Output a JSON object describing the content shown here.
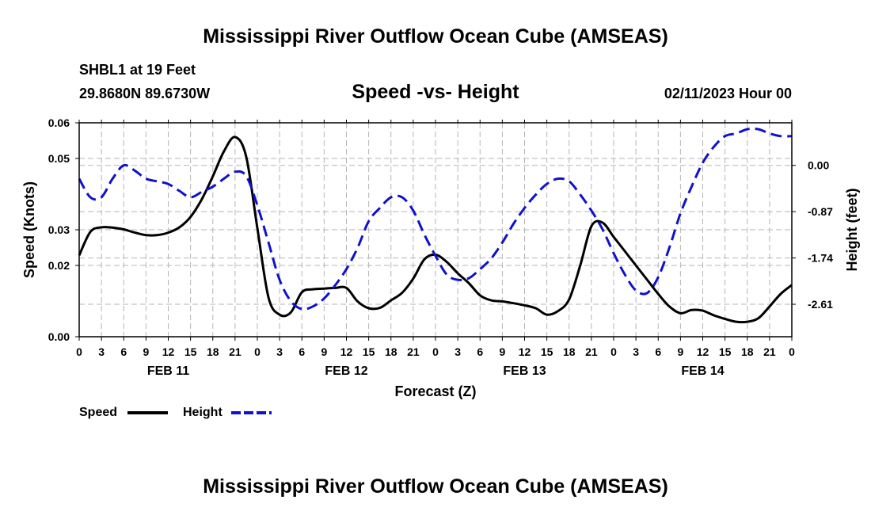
{
  "header": {
    "title": "Mississippi River Outflow Ocean Cube (AMSEAS)",
    "station": "SHBL1 at 19 Feet",
    "coords": "29.8680N  89.6730W",
    "subtitle": "Speed -vs- Height",
    "timestamp": "02/11/2023 Hour 00"
  },
  "footer": {
    "title": "Mississippi River Outflow Ocean Cube (AMSEAS)"
  },
  "legend": {
    "speed_label": "Speed",
    "height_label": "Height"
  },
  "colors": {
    "speed": "#000000",
    "height": "#1111cc",
    "grid": "#b5b5b5"
  },
  "chart_data": {
    "type": "line",
    "title": "Speed -vs- Height",
    "xlabel": "Forecast (Z)",
    "ylabel": "Speed (Knots)",
    "y2label": "Height (feet)",
    "xlim": [
      0,
      96
    ],
    "ylim": [
      0,
      0.06
    ],
    "y2lim": [
      -3.22,
      0.8
    ],
    "x_tick_labels": [
      "0",
      "3",
      "6",
      "9",
      "12",
      "15",
      "18",
      "21",
      "0",
      "3",
      "6",
      "9",
      "12",
      "15",
      "18",
      "21",
      "0",
      "3",
      "6",
      "9",
      "12",
      "15",
      "18",
      "21",
      "0",
      "3",
      "6",
      "9",
      "12",
      "15",
      "18",
      "21",
      "0"
    ],
    "y_ticks": [
      0,
      0.02,
      0.03,
      0.05,
      0.06
    ],
    "y_tick_labels": [
      "0.00",
      "0.02",
      "0.03",
      "0.05",
      "0.06"
    ],
    "y2_ticks": [
      0,
      -0.87,
      -1.74,
      -2.61
    ],
    "y2_tick_labels": [
      "0.00",
      "-0.87",
      "-1.74",
      "-2.61"
    ],
    "date_labels": [
      {
        "x": 12,
        "label": "FEB 11"
      },
      {
        "x": 36,
        "label": "FEB 12"
      },
      {
        "x": 60,
        "label": "FEB 13"
      },
      {
        "x": 84,
        "label": "FEB 14"
      }
    ],
    "series": [
      {
        "name": "Speed",
        "axis": "left",
        "style": "solid",
        "x": [
          0,
          1.5,
          3,
          4.5,
          6,
          7.5,
          9,
          10.5,
          12,
          13.5,
          15,
          16.5,
          18,
          19.5,
          21,
          22.5,
          24,
          25.5,
          27,
          28.5,
          30,
          31.5,
          33,
          34.5,
          36,
          37.5,
          39,
          40.5,
          42,
          43.5,
          45,
          46.5,
          48,
          49.5,
          51,
          52.5,
          54,
          55.5,
          57,
          58.5,
          60,
          61.5,
          63,
          64.5,
          66,
          67.5,
          69,
          70.5,
          72,
          73.5,
          75,
          76.5,
          78,
          79.5,
          81,
          82.5,
          84,
          85.5,
          87,
          88.5,
          90,
          91.5,
          93,
          94.5,
          96
        ],
        "values": [
          0.0228,
          0.0294,
          0.0307,
          0.0306,
          0.0301,
          0.0292,
          0.0285,
          0.0285,
          0.0292,
          0.0307,
          0.0336,
          0.0385,
          0.045,
          0.052,
          0.056,
          0.0505,
          0.0305,
          0.011,
          0.0062,
          0.0068,
          0.0125,
          0.0133,
          0.0135,
          0.0137,
          0.0137,
          0.0099,
          0.008,
          0.0081,
          0.0102,
          0.0123,
          0.0163,
          0.0217,
          0.023,
          0.021,
          0.0178,
          0.015,
          0.0116,
          0.0102,
          0.0099,
          0.0094,
          0.0088,
          0.008,
          0.0062,
          0.0072,
          0.0105,
          0.02,
          0.031,
          0.032,
          0.028,
          0.024,
          0.02,
          0.016,
          0.012,
          0.0085,
          0.0066,
          0.0075,
          0.0073,
          0.006,
          0.005,
          0.0042,
          0.0042,
          0.0052,
          0.0085,
          0.012,
          0.0145
        ]
      },
      {
        "name": "Height",
        "axis": "right",
        "style": "dashed",
        "x": [
          0,
          1.5,
          3,
          4.5,
          6,
          7.5,
          9,
          10.5,
          12,
          13.5,
          15,
          16.5,
          18,
          19.5,
          21,
          22.5,
          24,
          25.5,
          27,
          28.5,
          30,
          31.5,
          33,
          34.5,
          36,
          37.5,
          39,
          40.5,
          42,
          43.5,
          45,
          46.5,
          48,
          49.5,
          51,
          52.5,
          54,
          55.5,
          57,
          58.5,
          60,
          61.5,
          63,
          64.5,
          66,
          67.5,
          69,
          70.5,
          72,
          73.5,
          75,
          76.5,
          78,
          79.5,
          81,
          82.5,
          84,
          85.5,
          87,
          88.5,
          90,
          91.5,
          93,
          94.5,
          96
        ],
        "values": [
          -0.25,
          -0.6,
          -0.6,
          -0.25,
          0.0,
          -0.1,
          -0.25,
          -0.3,
          -0.35,
          -0.48,
          -0.6,
          -0.5,
          -0.4,
          -0.25,
          -0.12,
          -0.2,
          -0.75,
          -1.45,
          -2.15,
          -2.55,
          -2.7,
          -2.65,
          -2.5,
          -2.25,
          -1.95,
          -1.55,
          -1.05,
          -0.8,
          -0.6,
          -0.6,
          -0.85,
          -1.3,
          -1.7,
          -2.05,
          -2.15,
          -2.12,
          -1.95,
          -1.75,
          -1.45,
          -1.1,
          -0.8,
          -0.55,
          -0.35,
          -0.25,
          -0.3,
          -0.55,
          -0.85,
          -1.2,
          -1.65,
          -2.05,
          -2.35,
          -2.4,
          -2.1,
          -1.55,
          -0.9,
          -0.4,
          0.05,
          0.35,
          0.55,
          0.6,
          0.68,
          0.68,
          0.6,
          0.55,
          0.55
        ]
      }
    ]
  }
}
